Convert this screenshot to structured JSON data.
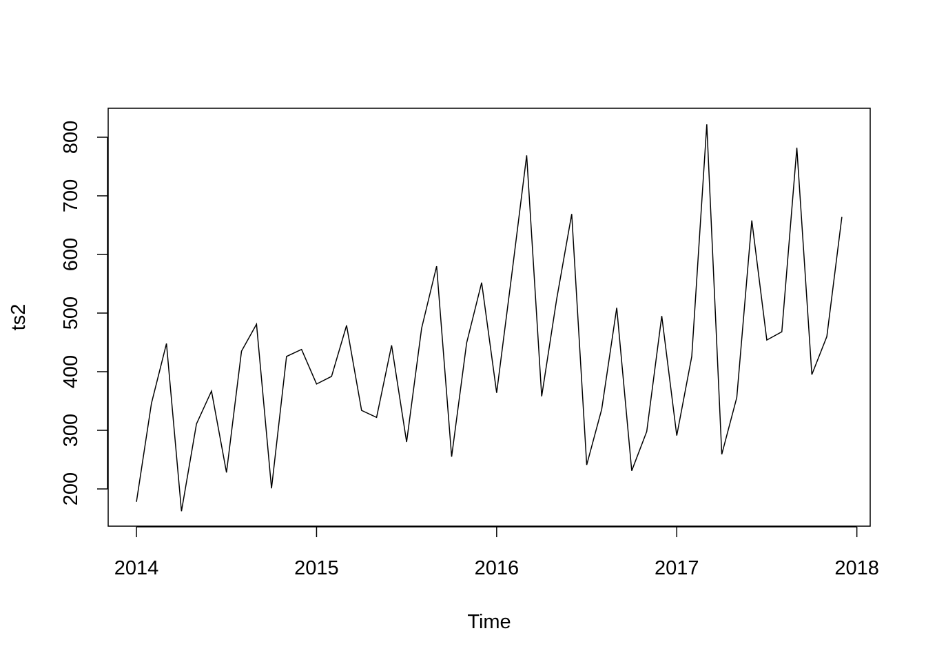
{
  "chart_data": {
    "type": "line",
    "x_label": "Time",
    "y_label": "ts2",
    "x": [
      2014,
      2014.0833,
      2014.1667,
      2014.25,
      2014.3333,
      2014.4167,
      2014.5,
      2014.5833,
      2014.6667,
      2014.75,
      2014.8333,
      2014.9167,
      2015,
      2015.0833,
      2015.1667,
      2015.25,
      2015.3333,
      2015.4167,
      2015.5,
      2015.5833,
      2015.6667,
      2015.75,
      2015.8333,
      2015.9167,
      2016,
      2016.0833,
      2016.1667,
      2016.25,
      2016.3333,
      2016.4167,
      2016.5,
      2016.5833,
      2016.6667,
      2016.75,
      2016.8333,
      2016.9167,
      2017,
      2017.0833,
      2017.1667,
      2017.25,
      2017.3333,
      2017.4167,
      2017.5,
      2017.5833,
      2017.6667,
      2017.75,
      2017.8333,
      2017.9167
    ],
    "series": [
      {
        "name": "ts2",
        "color": "#000000",
        "values": [
          178,
          346,
          448,
          162,
          311,
          367,
          228,
          435,
          481,
          201,
          426,
          438,
          379,
          392,
          479,
          334,
          322,
          445,
          280,
          474,
          580,
          255,
          449,
          552,
          364,
          564,
          769,
          358,
          524,
          669,
          241,
          336,
          509,
          231,
          298,
          495,
          291,
          426,
          822,
          259,
          356,
          658,
          454,
          468,
          782,
          395,
          460,
          664
        ]
      }
    ],
    "xlim": [
      2013.843,
      2018.074
    ],
    "xticks": [
      2014,
      2015,
      2016,
      2017,
      2018
    ],
    "ylim": [
      136.5,
      849.4
    ],
    "yticks": [
      200,
      300,
      400,
      500,
      600,
      700,
      800
    ],
    "grid": false
  }
}
